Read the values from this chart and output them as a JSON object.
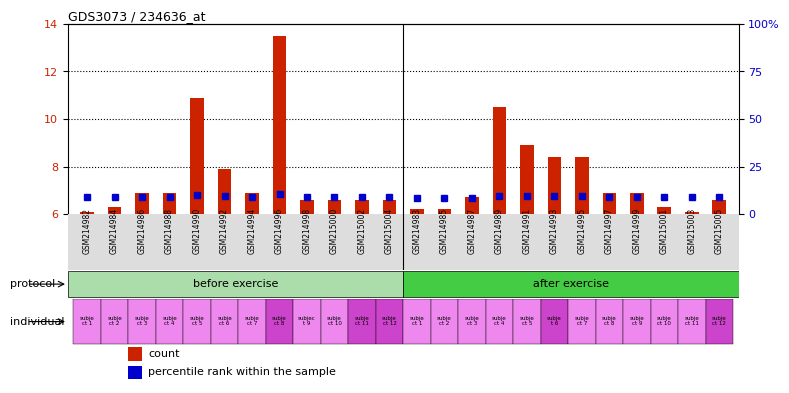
{
  "title": "GDS3073 / 234636_at",
  "samples": [
    "GSM214982",
    "GSM214984",
    "GSM214986",
    "GSM214988",
    "GSM214990",
    "GSM214992",
    "GSM214994",
    "GSM214996",
    "GSM214998",
    "GSM215000",
    "GSM215002",
    "GSM215004",
    "GSM214983",
    "GSM214985",
    "GSM214987",
    "GSM214989",
    "GSM214991",
    "GSM214993",
    "GSM214995",
    "GSM214997",
    "GSM214999",
    "GSM215001",
    "GSM215003",
    "GSM215005"
  ],
  "counts": [
    6.1,
    6.3,
    6.9,
    6.9,
    10.9,
    7.9,
    6.9,
    13.5,
    6.6,
    6.6,
    6.6,
    6.6,
    6.2,
    6.2,
    6.7,
    10.5,
    8.9,
    8.4,
    8.4,
    6.9,
    6.9,
    6.3,
    6.1,
    6.6
  ],
  "percentile_ranks": [
    9.0,
    8.9,
    9.2,
    9.2,
    9.9,
    9.3,
    9.2,
    10.4,
    8.8,
    9.0,
    9.0,
    8.8,
    8.5,
    8.7,
    8.7,
    9.7,
    9.4,
    9.5,
    9.4,
    8.9,
    8.9,
    8.9,
    8.9,
    9.1
  ],
  "ylim_left": [
    6,
    14
  ],
  "ylim_right": [
    0,
    100
  ],
  "yticks_left": [
    6,
    8,
    10,
    12,
    14
  ],
  "yticks_right": [
    0,
    25,
    50,
    75,
    100
  ],
  "ytick_labels_right": [
    "0",
    "25",
    "50",
    "75",
    "100%"
  ],
  "bar_color": "#cc2200",
  "dot_color": "#0000cc",
  "before_exercise_count": 12,
  "after_exercise_count": 12,
  "before_label": "before exercise",
  "after_label": "after exercise",
  "protocol_label": "protocol",
  "individual_label": "individual",
  "before_color": "#aaddaa",
  "after_color": "#44cc44",
  "individual_colors_before": [
    "#ee88ee",
    "#ee88ee",
    "#ee88ee",
    "#ee88ee",
    "#ee88ee",
    "#ee88ee",
    "#ee88ee",
    "#cc44cc",
    "#ee88ee",
    "#ee88ee",
    "#cc44cc",
    "#cc44cc"
  ],
  "individual_colors_after": [
    "#ee88ee",
    "#ee88ee",
    "#ee88ee",
    "#ee88ee",
    "#ee88ee",
    "#cc44cc",
    "#ee88ee",
    "#ee88ee",
    "#ee88ee",
    "#ee88ee",
    "#ee88ee",
    "#cc44cc"
  ],
  "individual_labels_before": [
    "subje\nct 1",
    "subje\nct 2",
    "subje\nct 3",
    "subje\nct 4",
    "subje\nct 5",
    "subje\nct 6",
    "subje\nct 7",
    "subje\nct 8",
    "subjec\nt 9",
    "subje\nct 10",
    "subje\nct 11",
    "subje\nct 12"
  ],
  "individual_labels_after": [
    "subje\nct 1",
    "subje\nct 2",
    "subje\nct 3",
    "subje\nct 4",
    "subje\nct 5",
    "subje\nt 6",
    "subje\nct 7",
    "subje\nct 8",
    "subje\nct 9",
    "subje\nct 10",
    "subje\nct 11",
    "subje\nct 12"
  ],
  "legend_count_label": "count",
  "legend_pct_label": "percentile rank within the sample",
  "plot_bg": "#ffffff",
  "xtick_bg": "#dddddd",
  "grid_dotted_values": [
    8,
    10,
    12
  ],
  "bar_bottom": 6
}
